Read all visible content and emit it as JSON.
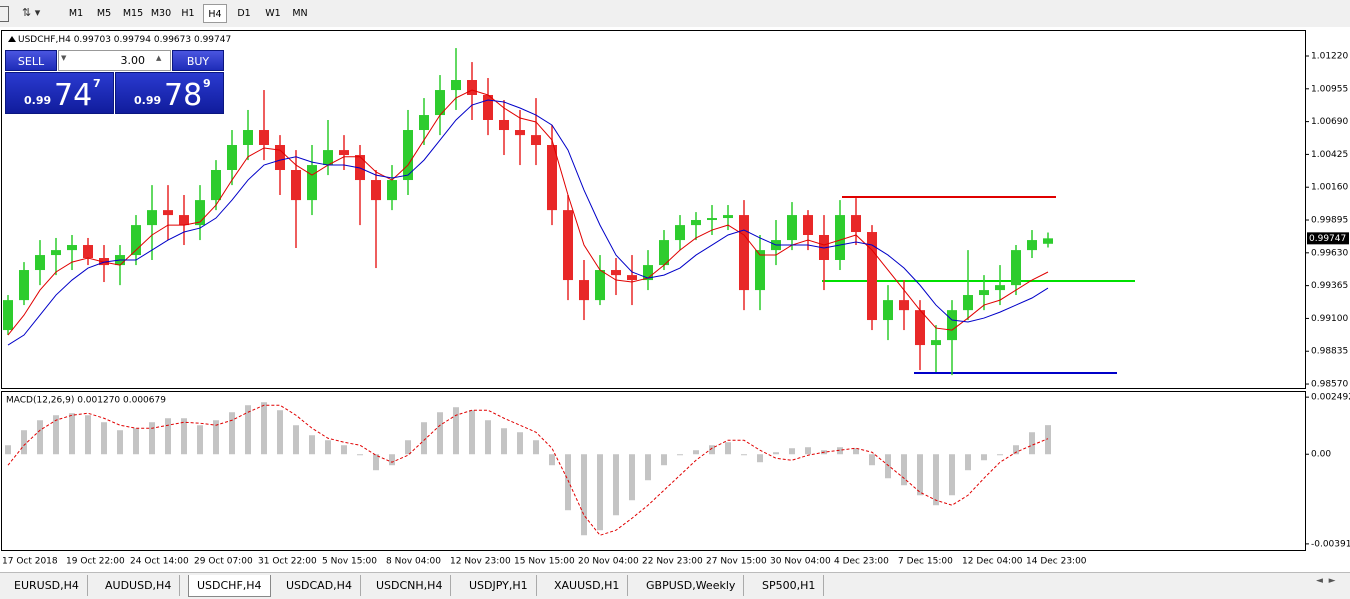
{
  "toolbar": {
    "timeframes": [
      "M1",
      "M5",
      "M15",
      "M30",
      "H1",
      "H4",
      "D1",
      "W1",
      "MN"
    ]
  },
  "trade_panel": {
    "sell": "SELL",
    "lot": "3.00",
    "buy": "BUY",
    "bid": [
      "0.99",
      "74",
      "7"
    ],
    "ask": [
      "0.99",
      "78",
      "9"
    ]
  },
  "tabs": [
    "EURUSD,H4",
    "AUDUSD,H4",
    "USDCHF,H4",
    "USDCAD,H4",
    "USDCNH,H4",
    "USDJPY,H1",
    "XAUUSD,H1",
    "GBPUSD,Weekly",
    "SP500,H1"
  ],
  "chart_data": [
    {
      "type": "candlestick",
      "title": "USDCHF,H4",
      "categories": [
        "17 Oct 2018",
        null,
        null,
        null,
        "19 Oct 22:00",
        null,
        null,
        null,
        "24 Oct 14:00",
        null,
        null,
        null,
        "29 Oct 07:00",
        null,
        null,
        null,
        "31 Oct 22:00",
        null,
        null,
        null,
        "5 Nov 15:00",
        null,
        null,
        null,
        "8 Nov 04:00",
        null,
        null,
        null,
        "12 Nov 23:00",
        null,
        null,
        null,
        "15 Nov 15:00",
        null,
        null,
        null,
        "20 Nov 04:00",
        null,
        null,
        null,
        "22 Nov 23:00",
        null,
        null,
        null,
        "27 Nov 15:00",
        null,
        null,
        null,
        "30 Nov 04:00",
        null,
        null,
        null,
        "4 Dec 23:00",
        null,
        null,
        null,
        "7 Dec 15:00",
        null,
        null,
        null,
        "12 Dec 04:00",
        null,
        null,
        null,
        "14 Dec 23:00",
        null
      ],
      "open": [
        0.99006,
        0.99248,
        0.99491,
        0.99612,
        0.99652,
        0.99693,
        0.99588,
        0.99531,
        0.99612,
        0.99854,
        0.99975,
        0.99935,
        0.99854,
        1.00056,
        1.00299,
        1.00501,
        1.00622,
        1.00501,
        1.00299,
        1.00056,
        1.00339,
        1.0046,
        1.0042,
        1.00218,
        1.00056,
        1.00218,
        1.00622,
        1.00743,
        1.00945,
        1.01026,
        1.00905,
        1.00703,
        1.00622,
        1.00581,
        1.00501,
        0.99975,
        0.9941,
        0.99248,
        0.99491,
        0.9945,
        0.9941,
        0.99531,
        0.99733,
        0.99854,
        0.99895,
        0.99911,
        0.99935,
        0.99329,
        0.99652,
        0.99733,
        0.99935,
        0.99774,
        0.99572,
        0.99935,
        0.99798,
        0.99087,
        0.99248,
        0.99167,
        0.98885,
        0.98925,
        0.99167,
        0.99289,
        0.99329,
        0.99369,
        0.99652,
        0.99703
      ],
      "high": [
        0.99289,
        0.99555,
        0.99733,
        0.9975,
        0.99774,
        0.9975,
        0.99693,
        0.99693,
        0.99935,
        1.00177,
        1.00177,
        1.00097,
        1.00177,
        1.00379,
        1.00622,
        1.00784,
        1.00945,
        1.00581,
        1.0046,
        1.00501,
        1.00703,
        1.00581,
        1.00501,
        1.00299,
        1.00339,
        1.00784,
        1.0088,
        1.01066,
        1.01284,
        1.01171,
        1.01042,
        1.00864,
        1.00784,
        1.0088,
        1.00662,
        1.00097,
        0.99572,
        0.99612,
        0.99588,
        0.99612,
        0.99652,
        0.99814,
        0.99935,
        0.99959,
        1.00016,
        1.00016,
        1.00056,
        0.99774,
        0.99895,
        1.0004,
        0.99975,
        0.99935,
        1.00056,
        1.00072,
        0.99854,
        0.99369,
        0.9941,
        0.99248,
        0.99046,
        0.99248,
        0.99652,
        0.9945,
        0.99531,
        0.99693,
        0.99814,
        0.99794
      ],
      "low": [
        0.98966,
        0.99208,
        0.99369,
        0.9945,
        0.99491,
        0.99531,
        0.99394,
        0.99369,
        0.99531,
        0.99572,
        0.99733,
        0.99693,
        0.99733,
        0.99975,
        1.00177,
        1.00379,
        1.00379,
        1.00097,
        0.99669,
        0.99935,
        1.00258,
        1.00299,
        0.99854,
        0.99507,
        0.99975,
        1.00097,
        1.00501,
        1.00581,
        1.00784,
        1.00703,
        1.00581,
        1.0042,
        1.00339,
        1.00339,
        0.99854,
        0.99248,
        0.99087,
        0.99208,
        0.99289,
        0.99208,
        0.99329,
        0.99491,
        0.99652,
        0.99733,
        0.99774,
        0.99814,
        0.99167,
        0.99167,
        0.99531,
        0.99652,
        0.99652,
        0.99329,
        0.99491,
        0.99693,
        0.99006,
        0.98925,
        0.99006,
        0.98683,
        0.98667,
        0.98642,
        0.99087,
        0.99167,
        0.99208,
        0.99289,
        0.99588,
        0.99673
      ],
      "close": [
        0.99248,
        0.99491,
        0.99612,
        0.99652,
        0.99693,
        0.99588,
        0.99531,
        0.99612,
        0.99854,
        0.99975,
        0.99935,
        0.99854,
        1.00056,
        1.00299,
        1.00501,
        1.00622,
        1.00501,
        1.00299,
        1.00056,
        1.00339,
        1.0046,
        1.0042,
        1.00218,
        1.00056,
        1.00218,
        1.00622,
        1.00743,
        1.00945,
        1.01026,
        1.00905,
        1.00703,
        1.00622,
        1.00581,
        1.00501,
        0.99975,
        0.9941,
        0.99248,
        0.99491,
        0.9945,
        0.9941,
        0.99531,
        0.99733,
        0.99854,
        0.99895,
        0.99911,
        0.99935,
        0.99329,
        0.99652,
        0.99733,
        0.99935,
        0.99774,
        0.99572,
        0.99935,
        0.99798,
        0.99087,
        0.99248,
        0.99167,
        0.98885,
        0.98925,
        0.99167,
        0.99289,
        0.99329,
        0.99369,
        0.99652,
        0.99733,
        0.99747
      ],
      "up_color": "#2ecc2e",
      "down_color": "#e82828",
      "lines": [
        {
          "color": "#e00000",
          "values": [
            0.98966,
            0.99127,
            0.99329,
            0.99475,
            0.99555,
            0.99588,
            0.99555,
            0.99531,
            0.99652,
            0.99774,
            0.99854,
            0.99854,
            0.99879,
            1.00016,
            1.00218,
            1.00406,
            1.00477,
            1.0046,
            1.00339,
            1.00258,
            1.00339,
            1.00406,
            1.00406,
            1.00283,
            1.00218,
            1.00339,
            1.00541,
            1.00743,
            1.00881,
            1.00945,
            1.00905,
            1.008,
            1.00719,
            1.00687,
            1.00541,
            1.00097,
            0.99693,
            0.99491,
            0.9941,
            0.99394,
            0.99426,
            0.99531,
            0.99652,
            0.9975,
            0.99814,
            0.99854,
            0.99774,
            0.99612,
            0.99612,
            0.99693,
            0.99733,
            0.99693,
            0.99733,
            0.99774,
            0.99652,
            0.99491,
            0.99329,
            0.99167,
            0.99022,
            0.99006,
            0.99103,
            0.99208,
            0.99248,
            0.99329,
            0.9941,
            0.99475
          ]
        },
        {
          "color": "#0000c8",
          "values": [
            0.98885,
            0.98966,
            0.99127,
            0.99289,
            0.9941,
            0.99507,
            0.99555,
            0.99572,
            0.99572,
            0.99652,
            0.99733,
            0.99798,
            0.9983,
            0.99911,
            1.00056,
            1.00218,
            1.00339,
            1.00379,
            1.00406,
            1.00363,
            1.00339,
            1.00339,
            1.00315,
            1.00258,
            1.00234,
            1.00258,
            1.00379,
            1.00541,
            1.00703,
            1.00824,
            1.00864,
            1.00848,
            1.008,
            1.00743,
            1.00662,
            1.0046,
            1.00137,
            0.99854,
            0.99612,
            0.99475,
            0.99426,
            0.9945,
            0.99507,
            0.99612,
            0.99693,
            0.99774,
            0.99814,
            0.9975,
            0.99693,
            0.99693,
            0.99693,
            0.99669,
            0.99693,
            0.99717,
            0.99693,
            0.99612,
            0.99507,
            0.99369,
            0.99208,
            0.99087,
            0.99071,
            0.99103,
            0.99151,
            0.99208,
            0.99265,
            0.99345
          ]
        }
      ],
      "levels": [
        {
          "value": 1.00081,
          "color": "#e00000"
        },
        {
          "value": 0.99402,
          "color": "#00e000"
        },
        {
          "value": 0.98659,
          "color": "#0000c8"
        }
      ],
      "ylim": [
        0.98538,
        1.0143
      ],
      "yticks": [
        {
          "value": 1.0122,
          "label": "1.01220"
        },
        1.00955,
        {
          "value": 1.0069,
          "label": "1.00690"
        },
        1.00425,
        {
          "value": 1.0016,
          "label": "1.00160"
        },
        0.99895,
        {
          "value": 0.9963,
          "label": "0.99630"
        },
        0.99365,
        {
          "value": 0.991,
          "label": "0.99100"
        },
        0.98835,
        {
          "value": 0.9857,
          "label": "0.98570"
        }
      ]
    },
    {
      "type": "macd",
      "title": "MACD(12,26,9) 0.001270 0.000679",
      "histogram": [
        0.000393,
        0.001048,
        0.001484,
        0.001702,
        0.00179,
        0.001702,
        0.001397,
        0.001048,
        0.001135,
        0.001397,
        0.001571,
        0.001571,
        0.001266,
        0.001484,
        0.001833,
        0.002139,
        0.00227,
        0.001921,
        0.001266,
        0.000829,
        0.000611,
        0.000393,
        -4.4e-05,
        -0.000698,
        -0.00048,
        0.000611,
        0.001397,
        0.001833,
        0.002052,
        0.001921,
        0.001484,
        0.001135,
        0.00096,
        0.000611,
        -0.00048,
        -0.002444,
        -0.003536,
        -0.003317,
        -0.002663,
        -0.002008,
        -0.001135,
        -0.00048,
        -4.4e-05,
        0.000175,
        0.000393,
        0.000524,
        -4.4e-05,
        -0.000349,
        8.7e-05,
        0.000262,
        0.000306,
        0.000175,
        0.000306,
        0.000262,
        -0.00048,
        -0.001048,
        -0.001353,
        -0.00179,
        -0.002226,
        -0.00179,
        -0.000698,
        -0.000262,
        -4.4e-05,
        0.000393,
        0.00096,
        0.00127
      ],
      "signal": [
        -0.00048,
        0.000393,
        0.001048,
        0.001484,
        0.001702,
        0.00179,
        0.001571,
        0.001266,
        0.001135,
        0.001135,
        0.001266,
        0.001397,
        0.001353,
        0.001266,
        0.001484,
        0.001833,
        0.002139,
        0.002139,
        0.001702,
        0.001135,
        0.000698,
        0.000524,
        0.000393,
        -4.4e-05,
        -0.000349,
        -4.4e-05,
        0.000611,
        0.001266,
        0.001702,
        0.001921,
        0.001921,
        0.001571,
        0.001266,
        0.00096,
        0.000262,
        -0.001135,
        -0.002663,
        -0.003536,
        -0.003317,
        -0.002794,
        -0.002226,
        -0.001571,
        -0.000917,
        -0.000262,
        0.000262,
        0.000611,
        0.000611,
        0.000175,
        -0.000175,
        -0.000262,
        -4.4e-05,
        8.7e-05,
        0.000175,
        0.000262,
        8.7e-05,
        -0.00048,
        -0.001048,
        -0.001659,
        -0.002008,
        -0.002226,
        -0.00179,
        -0.001048,
        -0.000349,
        8.7e-05,
        0.000393,
        0.000679
      ],
      "hist_color": "#c4c4c4",
      "signal_color": "#e00000",
      "ylim": [
        -0.00418,
        0.00276
      ],
      "yticks": [
        0.002492,
        {
          "value": 0,
          "label": "0.00"
        },
        -0.003913
      ]
    }
  ]
}
